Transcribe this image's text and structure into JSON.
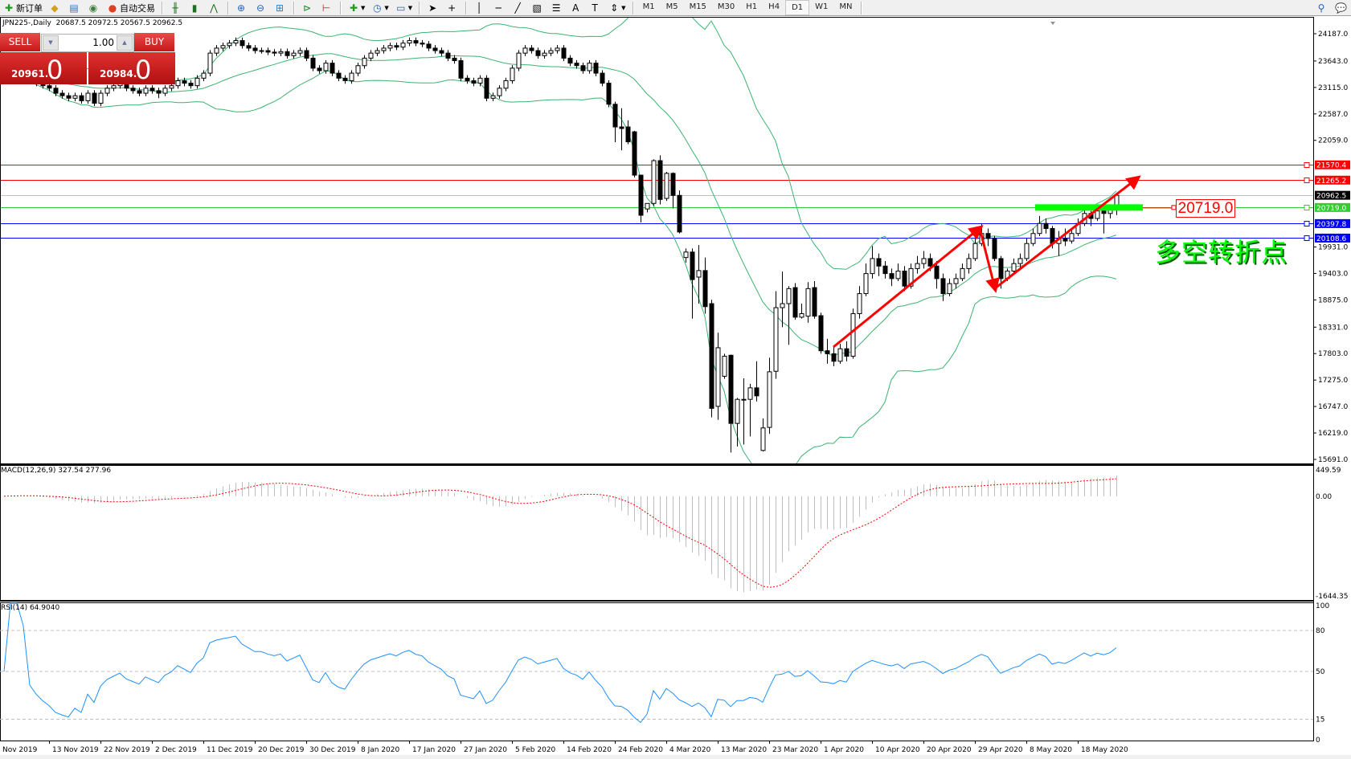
{
  "toolbar": {
    "new_order_label": "新订单",
    "auto_trading_label": "自动交易",
    "timeframes": [
      "M1",
      "M5",
      "M15",
      "M30",
      "H1",
      "H4",
      "D1",
      "W1",
      "MN"
    ],
    "active_timeframe": "D1",
    "icons": [
      "new-order-icon",
      "expert-icon",
      "history-icon",
      "signal-icon",
      "auto-trading-icon",
      "bar-chart-icon",
      "candlestick-icon",
      "line-chart-icon",
      "zoom-in-icon",
      "zoom-out-icon",
      "tile-windows-icon",
      "autoscroll-icon",
      "chart-shift-icon",
      "indicators-icon",
      "periods-icon",
      "templates-icon",
      "cursor-icon",
      "crosshair-icon",
      "vertical-line-icon",
      "horizontal-line-icon",
      "trendline-icon",
      "channel-icon",
      "fibonacci-icon",
      "text-icon",
      "text-label-icon",
      "arrows-icon",
      "search-icon",
      "chat-icon"
    ]
  },
  "chart": {
    "title": "JPN225-,Daily  20687.5 20972.5 20567.5 20962.5",
    "trade_panel": {
      "sell_label": "SELL",
      "buy_label": "BUY",
      "lot": "1.00",
      "sell_price_main": "20961.",
      "sell_price_big": "0",
      "buy_price_main": "20984.",
      "buy_price_big": "0"
    },
    "macd_label": "MACD(12,26,9) 327.54 277.96",
    "rsi_label": "RSI(14) 64.9040",
    "annotation_price": "20719.0",
    "annotation_text": "多空转折点"
  },
  "chart_data": {
    "type": "candlestick",
    "symbol": "JPN225-",
    "timeframe": "Daily",
    "colors": {
      "bull_fill": "#ffffff",
      "bear_fill": "#000000",
      "bollinger": "#3cb371",
      "macd_hist": "#c0c0c0",
      "macd_signal": "#ff0000",
      "rsi": "#1e90ff"
    },
    "bollinger": {
      "period": 20,
      "deviation": 2
    },
    "macd": {
      "fast": 12,
      "slow": 26,
      "signal": 9,
      "axis_labels": [
        "449.59",
        "0.00",
        "-1644.35"
      ],
      "range": [
        -1644.35,
        449.59
      ]
    },
    "rsi": {
      "period": 14,
      "levels": [
        80,
        50,
        15
      ],
      "axis_labels": [
        "100",
        "80",
        "50",
        "15",
        "0"
      ]
    },
    "price_axis": {
      "range": [
        15691.0,
        24187.0
      ],
      "ticks": [
        "24187.0",
        "23643.0",
        "23115.0",
        "22587.0",
        "22059.0",
        "19931.0",
        "19403.0",
        "18875.0",
        "18331.0",
        "17803.0",
        "17275.0",
        "16747.0",
        "16219.0",
        "15691.0"
      ]
    },
    "x_tick_labels": [
      "Nov 2019",
      "13 Nov 2019",
      "22 Nov 2019",
      "2 Dec 2019",
      "11 Dec 2019",
      "20 Dec 2019",
      "30 Dec 2019",
      "8 Jan 2020",
      "17 Jan 2020",
      "27 Jan 2020",
      "5 Feb 2020",
      "14 Feb 2020",
      "24 Feb 2020",
      "4 Mar 2020",
      "13 Mar 2020",
      "23 Mar 2020",
      "1 Apr 2020",
      "10 Apr 2020",
      "20 Apr 2020",
      "29 Apr 2020",
      "8 May 2020",
      "18 May 2020"
    ],
    "levels": [
      {
        "price": 21570.4,
        "label": "21570.4",
        "color": "#ff0000",
        "label_bg": "#ff0000"
      },
      {
        "price": 21265.2,
        "label": "21265.2",
        "color": "#ff0000",
        "label_bg": "#ff0000"
      },
      {
        "price": 20962.5,
        "label": "20962.5",
        "color": "#c0c0c0",
        "label_bg": "#000000"
      },
      {
        "price": 20719.0,
        "label": "20719.0",
        "color": "#32cd32",
        "label_bg": "#32cd32"
      },
      {
        "price": 20397.8,
        "label": "20397.8",
        "color": "#0000ff",
        "label_bg": "#0000ff"
      },
      {
        "price": 20108.6,
        "label": "20108.6",
        "color": "#0000ff",
        "label_bg": "#0000ff"
      }
    ],
    "ohlc": [
      [
        23250,
        23360,
        23190,
        23300
      ],
      [
        23300,
        23410,
        23240,
        23350
      ],
      [
        23350,
        23460,
        23290,
        23400
      ],
      [
        23400,
        23450,
        23320,
        23380
      ],
      [
        23380,
        23440,
        23190,
        23250
      ],
      [
        23250,
        23310,
        23140,
        23200
      ],
      [
        23200,
        23260,
        23090,
        23150
      ],
      [
        23150,
        23210,
        23040,
        23100
      ],
      [
        23100,
        23160,
        22940,
        23000
      ],
      [
        23000,
        23060,
        22890,
        22950
      ],
      [
        22950,
        23010,
        22840,
        22900
      ],
      [
        22900,
        23010,
        22840,
        22950
      ],
      [
        22950,
        23010,
        22790,
        22850
      ],
      [
        22850,
        23060,
        22790,
        23000
      ],
      [
        23000,
        23060,
        22740,
        22800
      ],
      [
        22800,
        23060,
        22740,
        23000
      ],
      [
        23000,
        23160,
        22940,
        23100
      ],
      [
        23100,
        23210,
        23040,
        23150
      ],
      [
        23150,
        23260,
        23090,
        23200
      ],
      [
        23200,
        23260,
        23040,
        23100
      ],
      [
        23100,
        23160,
        22990,
        23050
      ],
      [
        23050,
        23110,
        22940,
        23000
      ],
      [
        23000,
        23160,
        22940,
        23100
      ],
      [
        23100,
        23160,
        22990,
        23050
      ],
      [
        23050,
        23110,
        22900,
        23000
      ],
      [
        23000,
        23160,
        22940,
        23100
      ],
      [
        23100,
        23210,
        23040,
        23150
      ],
      [
        23150,
        23310,
        23090,
        23250
      ],
      [
        23250,
        23310,
        23140,
        23200
      ],
      [
        23200,
        23260,
        23090,
        23150
      ],
      [
        23150,
        23360,
        23090,
        23300
      ],
      [
        23300,
        23460,
        23240,
        23400
      ],
      [
        23400,
        23860,
        23340,
        23800
      ],
      [
        23800,
        23960,
        23740,
        23900
      ],
      [
        23900,
        24010,
        23840,
        23950
      ],
      [
        23950,
        24060,
        23890,
        24000
      ],
      [
        24000,
        24110,
        23940,
        24050
      ],
      [
        24050,
        24110,
        23890,
        23950
      ],
      [
        23950,
        24010,
        23840,
        23900
      ],
      [
        23900,
        23960,
        23790,
        23850
      ],
      [
        23850,
        23910,
        23790,
        23850
      ],
      [
        23850,
        23910,
        23760,
        23820
      ],
      [
        23820,
        23880,
        23740,
        23800
      ],
      [
        23800,
        23890,
        23740,
        23830
      ],
      [
        23830,
        23890,
        23690,
        23750
      ],
      [
        23750,
        23860,
        23690,
        23800
      ],
      [
        23800,
        23910,
        23740,
        23850
      ],
      [
        23850,
        23910,
        23640,
        23700
      ],
      [
        23700,
        23760,
        23440,
        23500
      ],
      [
        23500,
        23560,
        23390,
        23450
      ],
      [
        23450,
        23660,
        23390,
        23600
      ],
      [
        23600,
        23660,
        23340,
        23400
      ],
      [
        23400,
        23460,
        23240,
        23300
      ],
      [
        23300,
        23360,
        23190,
        23250
      ],
      [
        23250,
        23460,
        23190,
        23400
      ],
      [
        23400,
        23610,
        23340,
        23550
      ],
      [
        23550,
        23760,
        23490,
        23700
      ],
      [
        23700,
        23860,
        23640,
        23800
      ],
      [
        23800,
        23910,
        23740,
        23850
      ],
      [
        23850,
        23960,
        23790,
        23900
      ],
      [
        23900,
        24010,
        23840,
        23950
      ],
      [
        23950,
        24010,
        23860,
        23920
      ],
      [
        23920,
        24060,
        23860,
        24000
      ],
      [
        24000,
        24110,
        23940,
        24050
      ],
      [
        24050,
        24110,
        23940,
        24000
      ],
      [
        24000,
        24060,
        23920,
        23980
      ],
      [
        23980,
        24040,
        23840,
        23900
      ],
      [
        23900,
        23960,
        23790,
        23850
      ],
      [
        23850,
        23910,
        23740,
        23800
      ],
      [
        23800,
        23860,
        23640,
        23700
      ],
      [
        23700,
        23760,
        23590,
        23650
      ],
      [
        23650,
        23710,
        23240,
        23300
      ],
      [
        23300,
        23360,
        23190,
        23250
      ],
      [
        23250,
        23310,
        23140,
        23200
      ],
      [
        23200,
        23360,
        23140,
        23300
      ],
      [
        23300,
        23360,
        22840,
        22900
      ],
      [
        22900,
        23010,
        22840,
        22950
      ],
      [
        22950,
        23160,
        22890,
        23100
      ],
      [
        23100,
        23310,
        23040,
        23250
      ],
      [
        23250,
        23560,
        23190,
        23500
      ],
      [
        23500,
        23860,
        23440,
        23800
      ],
      [
        23800,
        23960,
        23740,
        23900
      ],
      [
        23900,
        23960,
        23790,
        23850
      ],
      [
        23850,
        23910,
        23690,
        23750
      ],
      [
        23750,
        23860,
        23690,
        23800
      ],
      [
        23800,
        23910,
        23740,
        23850
      ],
      [
        23850,
        23960,
        23790,
        23900
      ],
      [
        23900,
        23960,
        23640,
        23700
      ],
      [
        23700,
        23760,
        23540,
        23600
      ],
      [
        23600,
        23660,
        23490,
        23550
      ],
      [
        23550,
        23610,
        23390,
        23450
      ],
      [
        23450,
        23660,
        23390,
        23600
      ],
      [
        23600,
        23660,
        23340,
        23400
      ],
      [
        23400,
        23460,
        23140,
        23200
      ],
      [
        23200,
        23260,
        22720,
        22780
      ],
      [
        22780,
        22830,
        22020,
        22327
      ],
      [
        22327,
        22700,
        21860,
        22295
      ],
      [
        22327,
        22460,
        21980,
        22030
      ],
      [
        22230,
        22250,
        21320,
        21365
      ],
      [
        21365,
        21370,
        20420,
        20564
      ],
      [
        20690,
        20800,
        20620,
        20800
      ],
      [
        20800,
        21680,
        20750,
        21654
      ],
      [
        21654,
        21760,
        20780,
        20880
      ],
      [
        20900,
        21430,
        20850,
        21400
      ],
      [
        21400,
        21420,
        20700,
        20960
      ],
      [
        20960,
        21060,
        20200,
        20230
      ],
      [
        19720,
        19900,
        19620,
        19830
      ],
      [
        19830,
        19900,
        18500,
        19280
      ],
      [
        19330,
        19970,
        18800,
        19460
      ],
      [
        19460,
        19720,
        18600,
        18740
      ],
      [
        18800,
        18880,
        16530,
        16710
      ],
      [
        16750,
        18220,
        16480,
        17920
      ],
      [
        17350,
        17800,
        17300,
        17750
      ],
      [
        17770,
        17780,
        15830,
        16410
      ],
      [
        16410,
        16920,
        15950,
        16890
      ],
      [
        16890,
        17310,
        15990,
        16890
      ],
      [
        16890,
        17200,
        16150,
        17120
      ],
      [
        17120,
        17650,
        16850,
        16960
      ],
      [
        15870,
        16510,
        15850,
        16320
      ],
      [
        16330,
        17720,
        16200,
        17440
      ],
      [
        17450,
        19050,
        17300,
        18720
      ],
      [
        18720,
        19440,
        18330,
        18800
      ],
      [
        18800,
        19150,
        17980,
        19100
      ],
      [
        19120,
        19210,
        18480,
        18530
      ],
      [
        18530,
        18800,
        18500,
        18600
      ],
      [
        18550,
        19230,
        18420,
        19100
      ],
      [
        19120,
        19250,
        18500,
        18550
      ],
      [
        18560,
        18620,
        17800,
        17860
      ],
      [
        17860,
        18100,
        17600,
        17800
      ],
      [
        17800,
        17950,
        17550,
        17650
      ],
      [
        17650,
        18000,
        17600,
        17900
      ],
      [
        17900,
        18050,
        17650,
        17750
      ],
      [
        17750,
        18700,
        17700,
        18600
      ],
      [
        18600,
        19150,
        18500,
        19000
      ],
      [
        19000,
        19600,
        18950,
        19400
      ],
      [
        19400,
        19950,
        19300,
        19700
      ],
      [
        19700,
        19800,
        19350,
        19550
      ],
      [
        19550,
        19650,
        19300,
        19400
      ],
      [
        19400,
        19500,
        19150,
        19300
      ],
      [
        19300,
        19600,
        19250,
        19450
      ],
      [
        19450,
        19550,
        19050,
        19150
      ],
      [
        19150,
        19600,
        19100,
        19500
      ],
      [
        19500,
        19750,
        19400,
        19600
      ],
      [
        19600,
        19850,
        19500,
        19700
      ],
      [
        19700,
        19800,
        19450,
        19550
      ],
      [
        19550,
        19650,
        19100,
        19300
      ],
      [
        19300,
        19400,
        18850,
        19000
      ],
      [
        19000,
        19300,
        18950,
        19200
      ],
      [
        19200,
        19400,
        19100,
        19300
      ],
      [
        19300,
        19600,
        19250,
        19500
      ],
      [
        19500,
        19800,
        19400,
        19700
      ],
      [
        19700,
        20100,
        19650,
        20000
      ],
      [
        20000,
        20400,
        19950,
        20200
      ],
      [
        20200,
        20300,
        19950,
        20100
      ],
      [
        20100,
        20150,
        19650,
        19700
      ],
      [
        19700,
        19750,
        19100,
        19300
      ],
      [
        19300,
        19500,
        19250,
        19450
      ],
      [
        19450,
        19700,
        19400,
        19600
      ],
      [
        19600,
        19800,
        19500,
        19700
      ],
      [
        19700,
        20100,
        19650,
        20000
      ],
      [
        20000,
        20300,
        19950,
        20200
      ],
      [
        20200,
        20550,
        20150,
        20400
      ],
      [
        20400,
        20500,
        20200,
        20300
      ],
      [
        20300,
        20350,
        19900,
        20000
      ],
      [
        20000,
        20250,
        19750,
        20100
      ],
      [
        20100,
        20300,
        19950,
        20050
      ],
      [
        20050,
        20300,
        20000,
        20200
      ],
      [
        20200,
        20500,
        20150,
        20400
      ],
      [
        20400,
        20700,
        20350,
        20600
      ],
      [
        20600,
        20650,
        20350,
        20500
      ],
      [
        20500,
        20750,
        20450,
        20650
      ],
      [
        20650,
        20700,
        20200,
        20600
      ],
      [
        20600,
        20750,
        20500,
        20700
      ],
      [
        20687.5,
        20972.5,
        20567.5,
        20962.5
      ]
    ],
    "drawings": {
      "support_zone_price": 20719.0,
      "support_zone_color": "#00ff00",
      "arrow_color": "#ff0000"
    }
  }
}
